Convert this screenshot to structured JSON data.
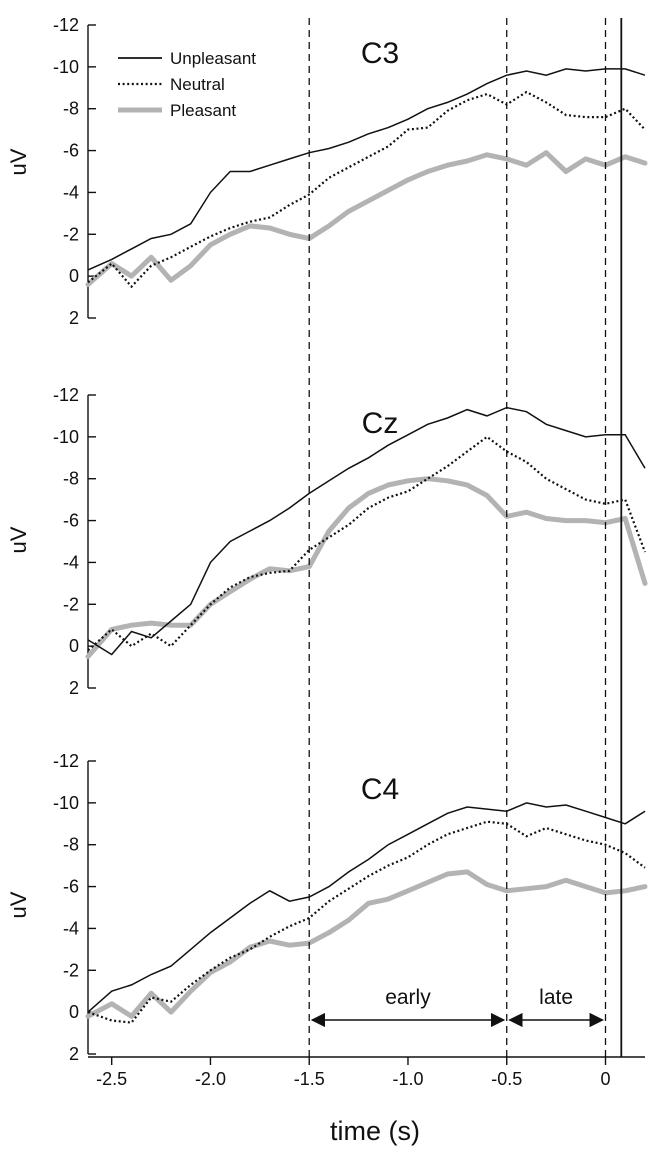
{
  "chart_data": {
    "type": "line",
    "xlabel": "time (s)",
    "xlim": [
      -2.62,
      0.2
    ],
    "ylim": [
      2,
      -12
    ],
    "y_inverted": true,
    "xticks": [
      {
        "value": -2.5,
        "label": "-2.5"
      },
      {
        "value": -2.0,
        "label": "-2.0"
      },
      {
        "value": -1.5,
        "label": "-1.5"
      },
      {
        "value": -1.0,
        "label": "-1.0"
      },
      {
        "value": -0.5,
        "label": "-0.5"
      },
      {
        "value": 0,
        "label": "0"
      }
    ],
    "yticks": [
      {
        "value": -12,
        "label": "-12"
      },
      {
        "value": -10,
        "label": "-10"
      },
      {
        "value": -8,
        "label": "-8"
      },
      {
        "value": -6,
        "label": "-6"
      },
      {
        "value": -4,
        "label": "-4"
      },
      {
        "value": -2,
        "label": "-2"
      },
      {
        "value": 0,
        "label": "0"
      },
      {
        "value": 2,
        "label": "2"
      }
    ],
    "legend": {
      "placement": "top-left of first panel",
      "entries": [
        {
          "label": "Unpleasant",
          "style": "solid-thin",
          "color": "#111111"
        },
        {
          "label": "Neutral",
          "style": "dotted",
          "color": "#111111"
        },
        {
          "label": "Pleasant",
          "style": "solid-thick",
          "color": "#b3b3b3"
        }
      ]
    },
    "reference_lines": [
      {
        "x": -1.5,
        "style": "dashed"
      },
      {
        "x": -0.5,
        "style": "dashed"
      },
      {
        "x": 0.0,
        "style": "dashed"
      },
      {
        "x": 0.08,
        "style": "solid"
      }
    ],
    "ranges": [
      {
        "label": "early",
        "from": -1.5,
        "to": -0.5
      },
      {
        "label": "late",
        "from": -0.5,
        "to": 0.0
      }
    ],
    "x": [
      -2.62,
      -2.5,
      -2.4,
      -2.3,
      -2.2,
      -2.1,
      -2.0,
      -1.9,
      -1.8,
      -1.7,
      -1.6,
      -1.5,
      -1.4,
      -1.3,
      -1.2,
      -1.1,
      -1.0,
      -0.9,
      -0.8,
      -0.7,
      -0.6,
      -0.5,
      -0.4,
      -0.3,
      -0.2,
      -0.1,
      0.0,
      0.1,
      0.2
    ],
    "panels": [
      {
        "title": "C3",
        "ylabel": "uV",
        "series": [
          {
            "name": "Unpleasant",
            "values": [
              -0.3,
              -0.8,
              -1.3,
              -1.8,
              -2.0,
              -2.5,
              -4.0,
              -5.0,
              -5.0,
              -5.3,
              -5.6,
              -5.9,
              -6.1,
              -6.4,
              -6.8,
              -7.1,
              -7.5,
              -8.0,
              -8.3,
              -8.7,
              -9.2,
              -9.6,
              -9.8,
              -9.6,
              -9.9,
              -9.8,
              -9.9,
              -9.9,
              -9.6
            ]
          },
          {
            "name": "Neutral",
            "values": [
              0.3,
              -0.6,
              0.5,
              -0.5,
              -0.9,
              -1.4,
              -1.9,
              -2.3,
              -2.6,
              -2.8,
              -3.4,
              -3.9,
              -4.7,
              -5.2,
              -5.7,
              -6.2,
              -7.0,
              -7.1,
              -7.9,
              -8.4,
              -8.7,
              -8.2,
              -8.8,
              -8.3,
              -7.7,
              -7.6,
              -7.6,
              -8.0,
              -7.0
            ]
          },
          {
            "name": "Pleasant",
            "values": [
              0.4,
              -0.6,
              0.0,
              -0.9,
              0.2,
              -0.5,
              -1.5,
              -2.0,
              -2.4,
              -2.3,
              -2.0,
              -1.8,
              -2.4,
              -3.1,
              -3.6,
              -4.1,
              -4.6,
              -5.0,
              -5.3,
              -5.5,
              -5.8,
              -5.6,
              -5.3,
              -5.9,
              -5.0,
              -5.6,
              -5.3,
              -5.7,
              -5.4
            ]
          }
        ]
      },
      {
        "title": "Cz",
        "ylabel": "uV",
        "series": [
          {
            "name": "Unpleasant",
            "values": [
              -0.3,
              0.4,
              -0.7,
              -0.4,
              -1.2,
              -2.0,
              -4.0,
              -5.0,
              -5.5,
              -6.0,
              -6.6,
              -7.3,
              -7.9,
              -8.5,
              -9.0,
              -9.6,
              -10.1,
              -10.6,
              -10.9,
              -11.3,
              -11.0,
              -11.4,
              -11.2,
              -10.6,
              -10.3,
              -10.0,
              -10.1,
              -10.1,
              -8.5
            ]
          },
          {
            "name": "Neutral",
            "values": [
              0.2,
              -0.8,
              0.0,
              -0.6,
              0.0,
              -1.0,
              -2.0,
              -2.8,
              -3.3,
              -3.5,
              -3.6,
              -4.6,
              -5.2,
              -5.8,
              -6.6,
              -7.1,
              -7.4,
              -8.0,
              -8.6,
              -9.3,
              -10.0,
              -9.3,
              -8.8,
              -8.0,
              -7.5,
              -7.0,
              -6.8,
              -7.0,
              -4.5
            ]
          },
          {
            "name": "Pleasant",
            "values": [
              0.5,
              -0.8,
              -1.0,
              -1.1,
              -1.0,
              -1.0,
              -2.0,
              -2.6,
              -3.2,
              -3.7,
              -3.6,
              -3.8,
              -5.5,
              -6.6,
              -7.3,
              -7.7,
              -7.9,
              -8.0,
              -7.9,
              -7.7,
              -7.2,
              -6.2,
              -6.4,
              -6.1,
              -6.0,
              -6.0,
              -5.9,
              -6.1,
              -3.0
            ]
          }
        ]
      },
      {
        "title": "C4",
        "ylabel": "uV",
        "series": [
          {
            "name": "Unpleasant",
            "values": [
              0.0,
              -1.0,
              -1.3,
              -1.8,
              -2.2,
              -3.0,
              -3.8,
              -4.5,
              -5.2,
              -5.8,
              -5.3,
              -5.5,
              -6.0,
              -6.7,
              -7.3,
              -8.0,
              -8.5,
              -9.0,
              -9.5,
              -9.8,
              -9.7,
              -9.6,
              -10.0,
              -9.8,
              -9.9,
              -9.6,
              -9.3,
              -9.0,
              -9.6
            ]
          },
          {
            "name": "Neutral",
            "values": [
              0.0,
              0.4,
              0.5,
              -0.7,
              -0.5,
              -1.3,
              -2.0,
              -2.6,
              -3.0,
              -3.6,
              -4.1,
              -4.5,
              -5.3,
              -5.9,
              -6.5,
              -7.0,
              -7.4,
              -8.0,
              -8.5,
              -8.8,
              -9.1,
              -9.0,
              -8.4,
              -8.8,
              -8.5,
              -8.2,
              -8.0,
              -7.6,
              -6.9
            ]
          },
          {
            "name": "Pleasant",
            "values": [
              0.2,
              -0.4,
              0.2,
              -0.9,
              0.0,
              -1.0,
              -1.9,
              -2.4,
              -3.1,
              -3.4,
              -3.2,
              -3.3,
              -3.8,
              -4.4,
              -5.2,
              -5.4,
              -5.8,
              -6.2,
              -6.6,
              -6.7,
              -6.1,
              -5.8,
              -5.9,
              -6.0,
              -6.3,
              -6.0,
              -5.7,
              -5.8,
              -6.0
            ]
          }
        ]
      }
    ]
  }
}
